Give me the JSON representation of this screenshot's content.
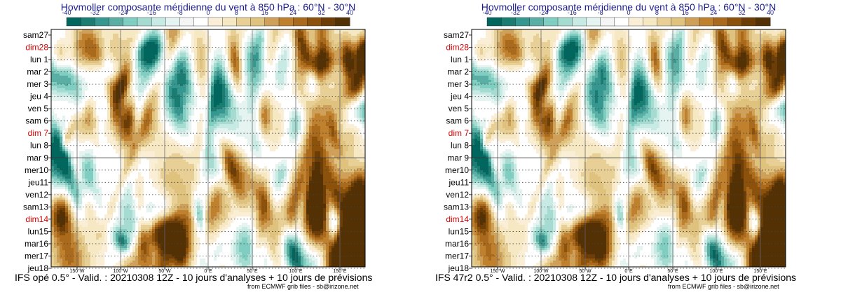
{
  "chart_data": [
    {
      "type": "heatmap",
      "title": "Hovmoller composante méridienne du vent à 850 hPa : 60°N - 30°N",
      "colorbar_ticks": [
        "-40",
        "-32",
        "-24",
        "-16",
        "-8",
        "0",
        "8",
        "16",
        "24",
        "32",
        "40"
      ],
      "colorbar_colors": [
        "#01665e",
        "#1b7c72",
        "#35978f",
        "#5aaea4",
        "#80cdc1",
        "#a6dbd1",
        "#c7eae5",
        "#e6f4f1",
        "#f5f5f5",
        "#ffffff",
        "#faefd6",
        "#f6e8c3",
        "#e8cf95",
        "#dfc27d",
        "#cfa05a",
        "#bf812d",
        "#a96a1e",
        "#8c510a",
        "#6d3d07",
        "#543005"
      ],
      "y_labels": [
        "sam27",
        "dim28",
        "lun 1",
        "mar 2",
        "mer 3",
        "jeu 4",
        "ven 5",
        "sam 6",
        "dim 7",
        "lun 8",
        "mar 9",
        "mer10",
        "jeu11",
        "ven12",
        "sam13",
        "dim14",
        "lun15",
        "mar16",
        "mer17",
        "jeu18"
      ],
      "weekend_color": "#d40000",
      "weekday_color": "#000000",
      "weekend_days": [
        "dim28",
        "dim 7",
        "dim14"
      ],
      "x_labels": [
        "150°W",
        "100°W",
        "50°W",
        "0°E",
        "50°E",
        "100°E",
        "150°E"
      ],
      "analysis_forecast_boundary": "mar 9",
      "caption": "IFS opé 0.5° - Valid. : 20210308 12Z - 10 jours d'analyses + 10 jours de prévisions",
      "credit": "from ECMWF grib files - sb@irizone.net"
    },
    {
      "type": "heatmap",
      "title": "Hovmoller composante méridienne du vent à 850 hPa : 60°N - 30°N",
      "colorbar_ticks": [
        "-40",
        "-32",
        "-24",
        "-16",
        "-8",
        "0",
        "8",
        "16",
        "24",
        "32",
        "40"
      ],
      "colorbar_colors": [
        "#01665e",
        "#1b7c72",
        "#35978f",
        "#5aaea4",
        "#80cdc1",
        "#a6dbd1",
        "#c7eae5",
        "#e6f4f1",
        "#f5f5f5",
        "#ffffff",
        "#faefd6",
        "#f6e8c3",
        "#e8cf95",
        "#dfc27d",
        "#cfa05a",
        "#bf812d",
        "#a96a1e",
        "#8c510a",
        "#6d3d07",
        "#543005"
      ],
      "y_labels": [
        "sam27",
        "dim28",
        "lun 1",
        "mar 2",
        "mer 3",
        "jeu 4",
        "ven 5",
        "sam 6",
        "dim 7",
        "lun 8",
        "mar 9",
        "mer10",
        "jeu11",
        "ven12",
        "sam13",
        "dim14",
        "lun15",
        "mar16",
        "mer17",
        "jeu18"
      ],
      "weekend_color": "#d40000",
      "weekday_color": "#000000",
      "weekend_days": [
        "dim28",
        "dim 7",
        "dim14"
      ],
      "x_labels": [
        "150°W",
        "100°W",
        "50°W",
        "0°E",
        "50°E",
        "100°E",
        "150°E"
      ],
      "analysis_forecast_boundary": "mar 9",
      "caption": "IFS 47r2 0.5° - Valid. : 20210308 12Z - 10 jours d'analyses + 10 jours de prévisions",
      "credit": "from ECMWF grib files - sb@irizone.net"
    }
  ]
}
